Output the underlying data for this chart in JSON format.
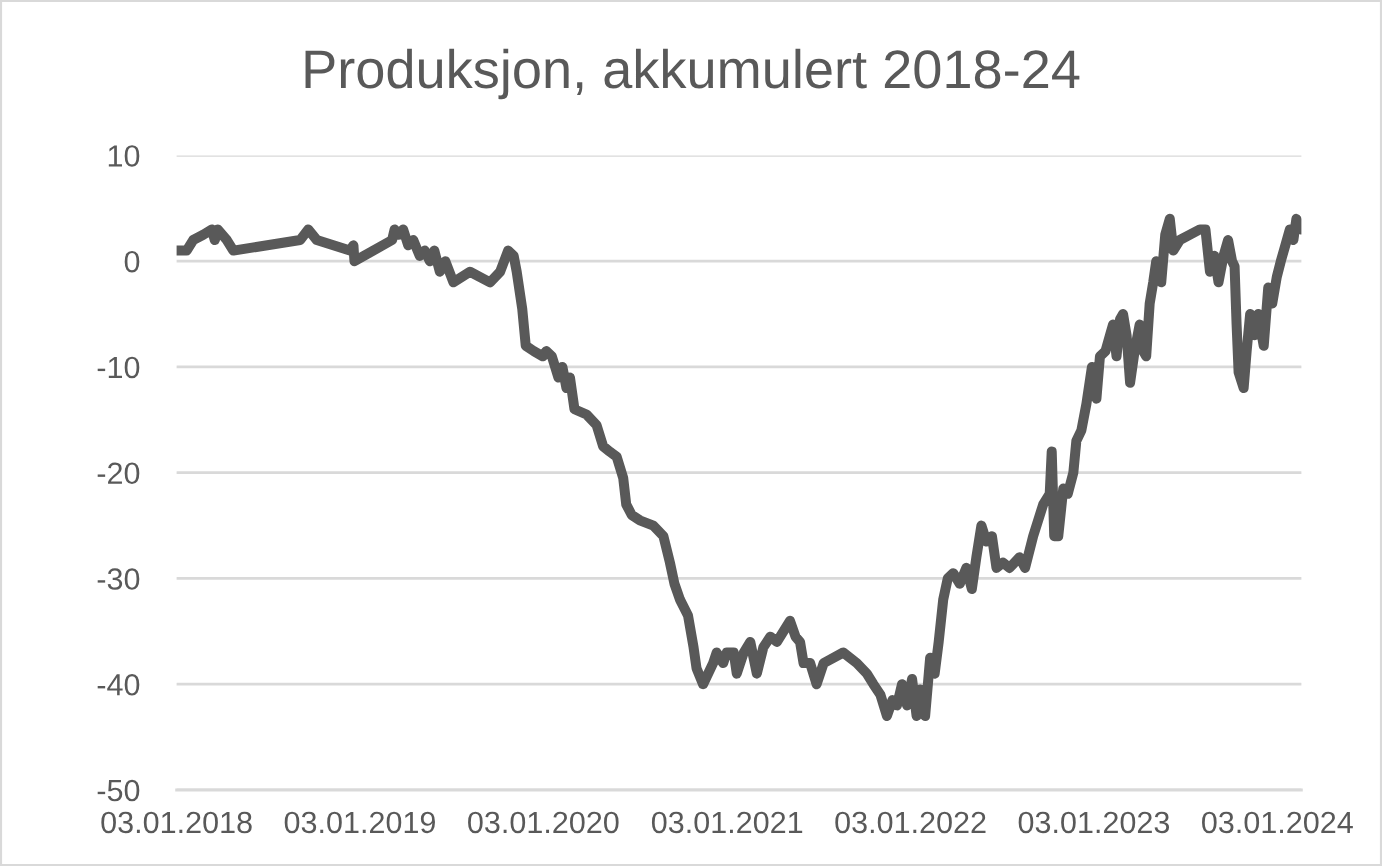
{
  "chart_data": {
    "type": "line",
    "title": "Produksjon, akkumulert 2018-24",
    "x": [
      "2018-01-03",
      "2018-01-23",
      "2018-02-05",
      "2018-02-25",
      "2018-03-14",
      "2018-03-20",
      "2018-03-26",
      "2018-04-13",
      "2018-04-26",
      "2018-09-06",
      "2018-09-22",
      "2018-10-09",
      "2018-12-14",
      "2018-12-21",
      "2018-12-23",
      "2019-03-08",
      "2019-03-13",
      "2019-03-21",
      "2019-03-30",
      "2019-04-09",
      "2019-04-19",
      "2019-05-02",
      "2019-05-12",
      "2019-05-22",
      "2019-05-31",
      "2019-06-11",
      "2019-06-22",
      "2019-07-08",
      "2019-08-10",
      "2019-09-19",
      "2019-10-09",
      "2019-10-25",
      "2019-11-05",
      "2019-11-11",
      "2019-11-22",
      "2019-11-29",
      "2019-12-15",
      "2020-01-02",
      "2020-01-09",
      "2020-01-20",
      "2020-02-02",
      "2020-02-10",
      "2020-02-18",
      "2020-02-25",
      "2020-03-05",
      "2020-03-29",
      "2020-04-18",
      "2020-05-01",
      "2020-05-14",
      "2020-05-28",
      "2020-06-10",
      "2020-06-16",
      "2020-06-27",
      "2020-07-13",
      "2020-08-09",
      "2020-08-29",
      "2020-09-11",
      "2020-09-20",
      "2020-10-01",
      "2020-10-17",
      "2020-10-28",
      "2020-11-03",
      "2020-11-16",
      "2020-12-06",
      "2020-12-13",
      "2020-12-26",
      "2021-01-02",
      "2021-01-16",
      "2021-01-22",
      "2021-02-05",
      "2021-02-18",
      "2021-03-03",
      "2021-03-16",
      "2021-03-30",
      "2021-04-12",
      "2021-04-25",
      "2021-05-08",
      "2021-05-19",
      "2021-05-28",
      "2021-06-04",
      "2021-06-17",
      "2021-06-30",
      "2021-07-14",
      "2021-08-22",
      "2021-09-18",
      "2021-10-08",
      "2021-10-21",
      "2021-11-04",
      "2021-11-17",
      "2021-11-28",
      "2021-12-07",
      "2021-12-17",
      "2021-12-27",
      "2022-01-06",
      "2022-01-15",
      "2022-01-22",
      "2022-02-01",
      "2022-02-11",
      "2022-02-20",
      "2022-02-28",
      "2022-03-09",
      "2022-03-18",
      "2022-03-29",
      "2022-04-11",
      "2022-04-24",
      "2022-05-05",
      "2022-05-14",
      "2022-05-24",
      "2022-06-03",
      "2022-06-14",
      "2022-06-23",
      "2022-07-06",
      "2022-07-19",
      "2022-08-08",
      "2022-08-19",
      "2022-09-04",
      "2022-09-24",
      "2022-10-07",
      "2022-10-11",
      "2022-10-16",
      "2022-10-24",
      "2022-11-03",
      "2022-11-12",
      "2022-11-23",
      "2022-11-29",
      "2022-12-09",
      "2022-12-19",
      "2022-12-30",
      "2023-01-08",
      "2023-01-15",
      "2023-01-26",
      "2023-02-04",
      "2023-02-10",
      "2023-02-17",
      "2023-02-24",
      "2023-03-02",
      "2023-03-09",
      "2023-03-16",
      "2023-03-25",
      "2023-04-04",
      "2023-04-11",
      "2023-04-17",
      "2023-04-24",
      "2023-05-01",
      "2023-05-07",
      "2023-05-17",
      "2023-05-25",
      "2023-06-03",
      "2023-06-10",
      "2023-06-23",
      "2023-08-02",
      "2023-08-13",
      "2023-08-22",
      "2023-08-31",
      "2023-09-08",
      "2023-09-18",
      "2023-09-27",
      "2023-10-05",
      "2023-10-10",
      "2023-10-14",
      "2023-10-18",
      "2023-10-28",
      "2023-11-03",
      "2023-11-10",
      "2023-11-19",
      "2023-11-26",
      "2023-12-07",
      "2023-12-16",
      "2023-12-24",
      "2024-01-02",
      "2024-01-10",
      "2024-01-19",
      "2024-01-28",
      "2024-02-04",
      "2024-02-10",
      "2024-02-20"
    ],
    "series": [
      {
        "color": "#595959",
        "values": [
          1,
          1,
          2,
          2.5,
          3,
          2,
          3,
          2,
          1,
          2,
          3,
          2,
          1,
          1.5,
          0,
          2,
          3,
          2.5,
          3,
          1.5,
          2,
          0.5,
          1,
          0,
          1,
          -1,
          0,
          -2,
          -1,
          -2,
          -1,
          1,
          0.5,
          -1,
          -4.5,
          -8,
          -8.5,
          -9,
          -8.5,
          -9,
          -11,
          -10,
          -12,
          -11,
          -14,
          -14.5,
          -15.5,
          -17.5,
          -18,
          -18.5,
          -20.5,
          -23,
          -24,
          -24.5,
          -25,
          -26,
          -28.5,
          -30.5,
          -32,
          -33.5,
          -36.5,
          -38.5,
          -40,
          -38,
          -37,
          -38,
          -37,
          -37,
          -39,
          -37,
          -36,
          -39,
          -36.5,
          -35.5,
          -36,
          -35,
          -34,
          -35.5,
          -36,
          -38,
          -38,
          -40,
          -38,
          -37,
          -38,
          -39,
          -40,
          -41,
          -43,
          -41.5,
          -42,
          -40,
          -42,
          -39.5,
          -43,
          -40.5,
          -43,
          -37.5,
          -39,
          -36,
          -32,
          -30,
          -29.5,
          -30.5,
          -29,
          -31,
          -28,
          -25,
          -26.5,
          -26,
          -29,
          -28.5,
          -29,
          -28,
          -29,
          -26,
          -23,
          -22,
          -18,
          -26,
          -26,
          -21.5,
          -22,
          -20,
          -17,
          -16,
          -13.5,
          -10,
          -13,
          -9,
          -8.5,
          -7,
          -6,
          -9,
          -5.5,
          -5,
          -7,
          -11.5,
          -8.5,
          -6,
          -8.5,
          -9,
          -4,
          -2,
          0,
          -2,
          2.5,
          4,
          1,
          2,
          3,
          3,
          -1,
          0.5,
          -2,
          0.5,
          2,
          0,
          -0.5,
          -6,
          -10.5,
          -12,
          -8.5,
          -5,
          -7,
          -5,
          -8,
          -2.5,
          -4,
          -1.5,
          0,
          1.5,
          3,
          2,
          4,
          3
        ],
        "line_style": "solid"
      }
    ],
    "xlim": [
      "2018-01-03",
      "2024-02-20"
    ],
    "xticks": [
      {
        "value": "2018-01-03",
        "label": "03.01.2018"
      },
      {
        "value": "2019-01-03",
        "label": "03.01.2019"
      },
      {
        "value": "2020-01-03",
        "label": "03.01.2020"
      },
      {
        "value": "2021-01-03",
        "label": "03.01.2021"
      },
      {
        "value": "2022-01-03",
        "label": "03.01.2022"
      },
      {
        "value": "2023-01-03",
        "label": "03.01.2023"
      },
      {
        "value": "2024-01-03",
        "label": "03.01.2024"
      }
    ],
    "ylim": [
      -50,
      10
    ],
    "yticks": [
      -50,
      -40,
      -30,
      -20,
      -10,
      0,
      10
    ],
    "grid": "y"
  }
}
